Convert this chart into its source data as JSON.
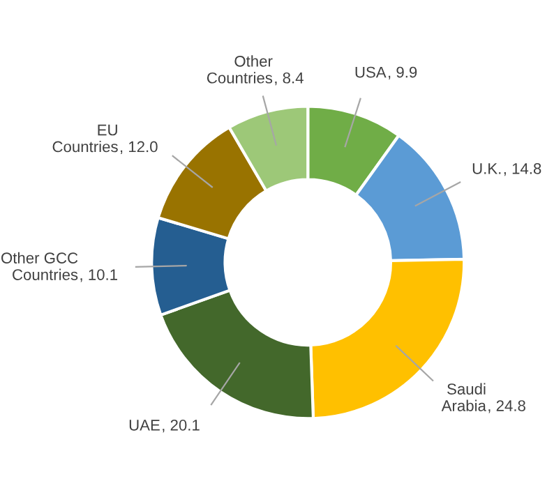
{
  "chart_data": {
    "type": "donut",
    "categories": [
      "USA",
      "U.K.",
      "Saudi Arabia",
      "UAE",
      "Other GCC Countries",
      "EU Countries",
      "Other Countries"
    ],
    "values": [
      9.9,
      14.8,
      24.8,
      20.1,
      10.1,
      12.0,
      8.4
    ],
    "colors": [
      "#70ad47",
      "#5b9bd5",
      "#ffc000",
      "#43682b",
      "#255e91",
      "#997300",
      "#9dc878"
    ],
    "value_labels": [
      ", 9.9",
      ", 14.8",
      ", 24.8",
      ", 20.1",
      ", 10.1",
      ", 12.0",
      ", 8.4"
    ],
    "legend": false
  }
}
